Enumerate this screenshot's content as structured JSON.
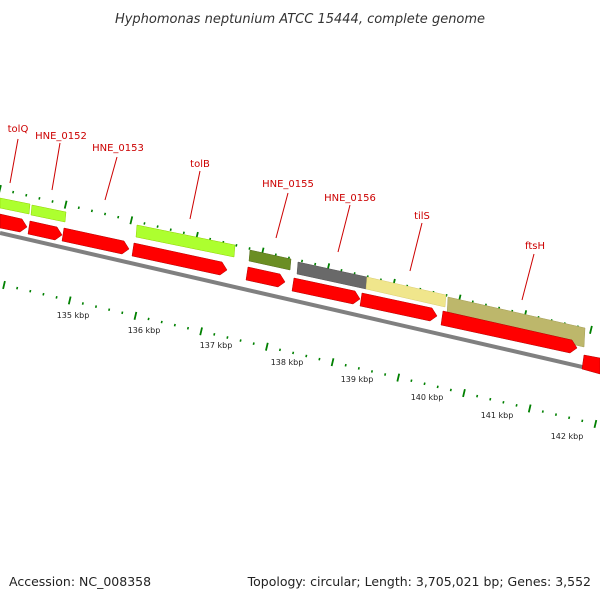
{
  "title": "Hyphomonas neptunium ATCC 15444, complete genome",
  "footer": {
    "accession": "Accession: NC_008358",
    "summary": "Topology: circular; Length: 3,705,021 bp; Genes: 3,552"
  },
  "gene_labels": [
    "tolQ",
    "HNE_0152",
    "HNE_0153",
    "tolB",
    "HNE_0155",
    "HNE_0156",
    "tilS",
    "ftsH"
  ],
  "kbp_labels": [
    "135 kbp",
    "136 kbp",
    "137 kbp",
    "138 kbp",
    "139 kbp",
    "140 kbp",
    "141 kbp",
    "142 kbp"
  ],
  "colors": {
    "cds_forward": "#ff0000",
    "backbone": "#808080",
    "ticks": "#008000",
    "label_text": "#cc0000",
    "lime_category": "#adff2f",
    "olive_category": "#6b8e23",
    "gray_category": "#696969",
    "khaki_category": "#f0e68c",
    "darkkhaki_category": "#bdb76b"
  }
}
